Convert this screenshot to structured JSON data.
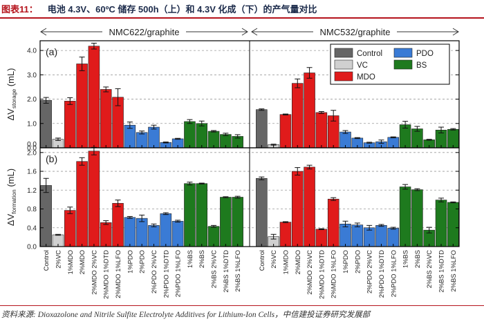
{
  "header": {
    "figure_label": "图表11：",
    "title": "电池 4.3V、60ºC 储存 500h（上）和 4.3V 化成（下）的产气量对比"
  },
  "source": "资料来源: Dioxazolone and Nitrile Sulfite Electrolyte Additives for Lithium-Ion Cells，中信建投证券研究发展部",
  "colors": {
    "Control": "#666666",
    "VC": "#d0d0d0",
    "MDO": "#e01b1b",
    "PDO": "#3a7bd5",
    "BS": "#1e7a1e",
    "border": "#000000"
  },
  "chart_data": {
    "type": "bar",
    "groups": [
      "NMC622/graphite",
      "NMC532/graphite"
    ],
    "legend": {
      "entries": [
        {
          "label": "Control",
          "category": "Control"
        },
        {
          "label": "PDO",
          "category": "PDO"
        },
        {
          "label": "VC",
          "category": "VC"
        },
        {
          "label": "BS",
          "category": "BS"
        },
        {
          "label": "MDO",
          "category": "MDO"
        }
      ],
      "placement": "top-right of upper panel"
    },
    "categories": [
      "Control",
      "2%VC",
      "1%MDO",
      "2%MDO",
      "2%MDO 2%VC",
      "2%MDO 1%DTD",
      "2%MDO 1%LFO",
      "1%PDO",
      "2%PDO",
      "2%PDO 2%VC",
      "2%PDO 1%DTD",
      "2%PDO 1%LFO",
      "1%BS",
      "2%BS",
      "2%BS 2%VC",
      "2%BS 1%DTD",
      "2%BS 1%LFO"
    ],
    "category_colors": [
      "Control",
      "VC",
      "MDO",
      "MDO",
      "MDO",
      "MDO",
      "MDO",
      "PDO",
      "PDO",
      "PDO",
      "PDO",
      "PDO",
      "BS",
      "BS",
      "BS",
      "BS",
      "BS"
    ],
    "panels": [
      {
        "label": "(a)",
        "ylabel_main": "ΔV",
        "ylabel_sub": "storage",
        "ylabel_unit": " (mL)",
        "ylim": [
          0,
          4.4
        ],
        "yticks": [
          0,
          1.0,
          2.0,
          3.0,
          4.0
        ],
        "tick_labels": [
          "0.0",
          "1.0",
          "2.0",
          "3.0",
          "4.0"
        ],
        "grid": "dashed horizontal",
        "series": [
          {
            "name": "NMC622/graphite",
            "values": [
              1.95,
              0.35,
              1.92,
              3.45,
              4.18,
              2.4,
              2.08,
              0.93,
              0.63,
              0.85,
              0.22,
              0.37,
              1.08,
              1.0,
              0.68,
              0.55,
              0.47
            ],
            "errors": [
              0.12,
              0.05,
              0.14,
              0.28,
              0.12,
              0.1,
              0.35,
              0.13,
              0.06,
              0.08,
              0.02,
              0.02,
              0.08,
              0.1,
              0.03,
              0.05,
              0.07
            ]
          },
          {
            "name": "NMC532/graphite",
            "values": [
              1.57,
              0.13,
              1.37,
              2.65,
              3.08,
              1.45,
              1.32,
              0.65,
              0.4,
              0.21,
              0.25,
              0.43,
              0.95,
              0.78,
              0.33,
              0.73,
              0.76
            ],
            "errors": [
              0.03,
              0.02,
              0.02,
              0.18,
              0.22,
              0.04,
              0.22,
              0.06,
              0.02,
              0.02,
              0.07,
              0.02,
              0.14,
              0.1,
              0.02,
              0.12,
              0.03
            ]
          }
        ]
      },
      {
        "label": "(b)",
        "ylabel_main": "ΔV",
        "ylabel_sub": "formation",
        "ylabel_unit": " (mL)",
        "ylim": [
          0,
          2.1
        ],
        "yticks": [
          0,
          0.4,
          0.8,
          1.2,
          1.6,
          2.0
        ],
        "tick_labels": [
          "0.0",
          "0.4",
          "0.8",
          "1.2",
          "1.6",
          "2.0"
        ],
        "grid": "dashed horizontal",
        "series": [
          {
            "name": "NMC622/graphite",
            "values": [
              1.3,
              0.25,
              0.77,
              1.81,
              2.03,
              0.51,
              0.92,
              0.62,
              0.6,
              0.45,
              0.7,
              0.54,
              1.34,
              1.34,
              0.43,
              1.05,
              1.05
            ],
            "errors": [
              0.15,
              0.01,
              0.07,
              0.08,
              0.08,
              0.04,
              0.07,
              0.02,
              0.07,
              0.03,
              0.02,
              0.02,
              0.03,
              0.01,
              0.02,
              0.01,
              0.02
            ]
          },
          {
            "name": "NMC532/graphite",
            "values": [
              1.45,
              0.21,
              0.52,
              1.6,
              1.69,
              0.37,
              1.01,
              0.48,
              0.46,
              0.4,
              0.45,
              0.39,
              1.27,
              1.21,
              0.35,
              0.99,
              0.94
            ],
            "errors": [
              0.03,
              0.05,
              0.01,
              0.08,
              0.04,
              0.01,
              0.03,
              0.06,
              0.04,
              0.05,
              0.02,
              0.02,
              0.05,
              0.02,
              0.06,
              0.04,
              0.01
            ]
          }
        ]
      }
    ]
  }
}
